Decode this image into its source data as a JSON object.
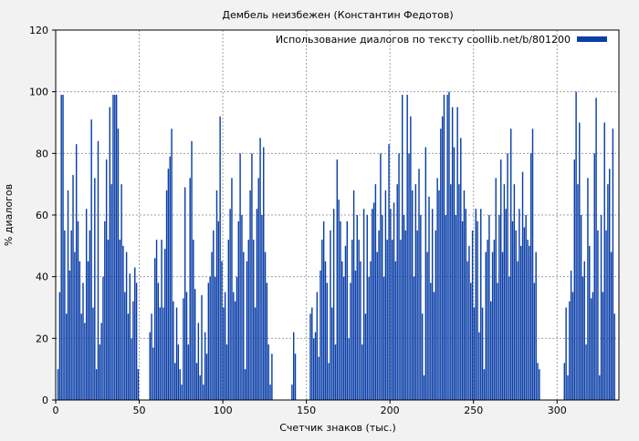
{
  "chart_data": {
    "type": "bar",
    "title": "Дембель неизбежен (Константин Федотов)",
    "xlabel": "Счетчик знаков (тыс.)",
    "ylabel": "% диалогов",
    "xlim": [
      0,
      337
    ],
    "ylim": [
      0,
      120
    ],
    "xticks": [
      0,
      50,
      100,
      150,
      200,
      250,
      300
    ],
    "yticks": [
      0,
      20,
      40,
      60,
      80,
      100,
      120
    ],
    "grid": true,
    "legend_position": "top-right",
    "series": [
      {
        "name": "Использование диалогов по тексту coollib.net/b/801200",
        "color": "#0a3ea8",
        "points": [
          [
            0,
            0
          ],
          [
            1,
            10
          ],
          [
            2,
            35
          ],
          [
            3,
            99
          ],
          [
            4,
            99
          ],
          [
            5,
            55
          ],
          [
            6,
            28
          ],
          [
            7,
            68
          ],
          [
            8,
            42
          ],
          [
            9,
            55
          ],
          [
            10,
            73
          ],
          [
            11,
            48
          ],
          [
            12,
            83
          ],
          [
            13,
            58
          ],
          [
            14,
            45
          ],
          [
            15,
            28
          ],
          [
            16,
            38
          ],
          [
            17,
            25
          ],
          [
            18,
            62
          ],
          [
            19,
            45
          ],
          [
            20,
            55
          ],
          [
            21,
            91
          ],
          [
            22,
            30
          ],
          [
            23,
            72
          ],
          [
            24,
            10
          ],
          [
            25,
            84
          ],
          [
            26,
            18
          ],
          [
            27,
            25
          ],
          [
            28,
            40
          ],
          [
            29,
            58
          ],
          [
            30,
            78
          ],
          [
            31,
            52
          ],
          [
            32,
            95
          ],
          [
            33,
            70
          ],
          [
            34,
            99
          ],
          [
            35,
            99
          ],
          [
            36,
            99
          ],
          [
            37,
            88
          ],
          [
            38,
            52
          ],
          [
            39,
            70
          ],
          [
            40,
            50
          ],
          [
            41,
            35
          ],
          [
            42,
            48
          ],
          [
            43,
            28
          ],
          [
            44,
            41
          ],
          [
            45,
            20
          ],
          [
            46,
            32
          ],
          [
            47,
            43
          ],
          [
            48,
            38
          ],
          [
            49,
            10
          ],
          [
            50,
            0
          ],
          [
            51,
            0
          ],
          [
            52,
            0
          ],
          [
            53,
            0
          ],
          [
            54,
            0
          ],
          [
            55,
            0
          ],
          [
            56,
            22
          ],
          [
            57,
            28
          ],
          [
            58,
            17
          ],
          [
            59,
            46
          ],
          [
            60,
            52
          ],
          [
            61,
            38
          ],
          [
            62,
            30
          ],
          [
            63,
            52
          ],
          [
            64,
            30
          ],
          [
            65,
            49
          ],
          [
            66,
            68
          ],
          [
            67,
            75
          ],
          [
            68,
            79
          ],
          [
            69,
            88
          ],
          [
            70,
            32
          ],
          [
            71,
            12
          ],
          [
            72,
            30
          ],
          [
            73,
            18
          ],
          [
            74,
            10
          ],
          [
            75,
            5
          ],
          [
            76,
            33
          ],
          [
            77,
            69
          ],
          [
            78,
            35
          ],
          [
            79,
            18
          ],
          [
            80,
            72
          ],
          [
            81,
            84
          ],
          [
            82,
            52
          ],
          [
            83,
            36
          ],
          [
            84,
            12
          ],
          [
            85,
            25
          ],
          [
            86,
            8
          ],
          [
            87,
            34
          ],
          [
            88,
            5
          ],
          [
            89,
            22
          ],
          [
            90,
            15
          ],
          [
            91,
            38
          ],
          [
            92,
            40
          ],
          [
            93,
            48
          ],
          [
            94,
            55
          ],
          [
            95,
            40
          ],
          [
            96,
            68
          ],
          [
            97,
            58
          ],
          [
            98,
            92
          ],
          [
            99,
            45
          ],
          [
            100,
            30
          ],
          [
            101,
            35
          ],
          [
            102,
            18
          ],
          [
            103,
            52
          ],
          [
            104,
            62
          ],
          [
            105,
            72
          ],
          [
            106,
            35
          ],
          [
            107,
            32
          ],
          [
            108,
            40
          ],
          [
            109,
            58
          ],
          [
            110,
            80
          ],
          [
            111,
            60
          ],
          [
            112,
            48
          ],
          [
            113,
            10
          ],
          [
            114,
            45
          ],
          [
            115,
            52
          ],
          [
            116,
            68
          ],
          [
            117,
            80
          ],
          [
            118,
            52
          ],
          [
            119,
            30
          ],
          [
            120,
            62
          ],
          [
            121,
            72
          ],
          [
            122,
            85
          ],
          [
            123,
            60
          ],
          [
            124,
            82
          ],
          [
            125,
            48
          ],
          [
            126,
            38
          ],
          [
            127,
            18
          ],
          [
            128,
            5
          ],
          [
            129,
            15
          ],
          [
            130,
            0
          ],
          [
            131,
            0
          ],
          [
            132,
            0
          ],
          [
            133,
            0
          ],
          [
            134,
            0
          ],
          [
            135,
            0
          ],
          [
            136,
            0
          ],
          [
            137,
            0
          ],
          [
            138,
            0
          ],
          [
            139,
            0
          ],
          [
            140,
            0
          ],
          [
            141,
            5
          ],
          [
            142,
            22
          ],
          [
            143,
            15
          ],
          [
            144,
            0
          ],
          [
            145,
            0
          ],
          [
            146,
            0
          ],
          [
            147,
            0
          ],
          [
            148,
            0
          ],
          [
            149,
            0
          ],
          [
            150,
            0
          ],
          [
            151,
            0
          ],
          [
            152,
            28
          ],
          [
            153,
            30
          ],
          [
            154,
            20
          ],
          [
            155,
            22
          ],
          [
            156,
            35
          ],
          [
            157,
            14
          ],
          [
            158,
            42
          ],
          [
            159,
            52
          ],
          [
            160,
            58
          ],
          [
            161,
            45
          ],
          [
            162,
            38
          ],
          [
            163,
            12
          ],
          [
            164,
            55
          ],
          [
            165,
            30
          ],
          [
            166,
            62
          ],
          [
            167,
            18
          ],
          [
            168,
            78
          ],
          [
            169,
            65
          ],
          [
            170,
            58
          ],
          [
            171,
            45
          ],
          [
            172,
            40
          ],
          [
            173,
            50
          ],
          [
            174,
            58
          ],
          [
            175,
            20
          ],
          [
            176,
            38
          ],
          [
            177,
            52
          ],
          [
            178,
            68
          ],
          [
            179,
            42
          ],
          [
            180,
            60
          ],
          [
            181,
            52
          ],
          [
            182,
            45
          ],
          [
            183,
            18
          ],
          [
            184,
            62
          ],
          [
            185,
            28
          ],
          [
            186,
            60
          ],
          [
            187,
            40
          ],
          [
            188,
            45
          ],
          [
            189,
            62
          ],
          [
            190,
            64
          ],
          [
            191,
            70
          ],
          [
            192,
            48
          ],
          [
            193,
            55
          ],
          [
            194,
            80
          ],
          [
            195,
            60
          ],
          [
            196,
            40
          ],
          [
            197,
            68
          ],
          [
            198,
            52
          ],
          [
            199,
            83
          ],
          [
            200,
            62
          ],
          [
            201,
            52
          ],
          [
            202,
            64
          ],
          [
            203,
            45
          ],
          [
            204,
            70
          ],
          [
            205,
            80
          ],
          [
            206,
            52
          ],
          [
            207,
            99
          ],
          [
            208,
            60
          ],
          [
            209,
            55
          ],
          [
            210,
            99
          ],
          [
            211,
            80
          ],
          [
            212,
            92
          ],
          [
            213,
            68
          ],
          [
            214,
            40
          ],
          [
            215,
            70
          ],
          [
            216,
            55
          ],
          [
            217,
            75
          ],
          [
            218,
            60
          ],
          [
            219,
            28
          ],
          [
            220,
            8
          ],
          [
            221,
            82
          ],
          [
            222,
            48
          ],
          [
            223,
            66
          ],
          [
            224,
            38
          ],
          [
            225,
            62
          ],
          [
            226,
            35
          ],
          [
            227,
            55
          ],
          [
            228,
            72
          ],
          [
            229,
            68
          ],
          [
            230,
            88
          ],
          [
            231,
            92
          ],
          [
            232,
            99
          ],
          [
            233,
            60
          ],
          [
            234,
            99
          ],
          [
            235,
            100
          ],
          [
            236,
            70
          ],
          [
            237,
            95
          ],
          [
            238,
            82
          ],
          [
            239,
            60
          ],
          [
            240,
            95
          ],
          [
            241,
            70
          ],
          [
            242,
            85
          ],
          [
            243,
            58
          ],
          [
            244,
            68
          ],
          [
            245,
            62
          ],
          [
            246,
            45
          ],
          [
            247,
            50
          ],
          [
            248,
            38
          ],
          [
            249,
            55
          ],
          [
            250,
            30
          ],
          [
            251,
            62
          ],
          [
            252,
            58
          ],
          [
            253,
            22
          ],
          [
            254,
            62
          ],
          [
            255,
            30
          ],
          [
            256,
            10
          ],
          [
            257,
            48
          ],
          [
            258,
            52
          ],
          [
            259,
            60
          ],
          [
            260,
            32
          ],
          [
            261,
            48
          ],
          [
            262,
            52
          ],
          [
            263,
            72
          ],
          [
            264,
            38
          ],
          [
            265,
            60
          ],
          [
            266,
            78
          ],
          [
            267,
            48
          ],
          [
            268,
            70
          ],
          [
            269,
            62
          ],
          [
            270,
            80
          ],
          [
            271,
            40
          ],
          [
            272,
            88
          ],
          [
            273,
            58
          ],
          [
            274,
            70
          ],
          [
            275,
            55
          ],
          [
            276,
            45
          ],
          [
            277,
            62
          ],
          [
            278,
            50
          ],
          [
            279,
            74
          ],
          [
            280,
            56
          ],
          [
            281,
            60
          ],
          [
            282,
            52
          ],
          [
            283,
            50
          ],
          [
            284,
            80
          ],
          [
            285,
            88
          ],
          [
            286,
            38
          ],
          [
            287,
            48
          ],
          [
            288,
            12
          ],
          [
            289,
            10
          ],
          [
            290,
            0
          ],
          [
            291,
            0
          ],
          [
            292,
            0
          ],
          [
            293,
            0
          ],
          [
            294,
            0
          ],
          [
            295,
            0
          ],
          [
            296,
            0
          ],
          [
            297,
            0
          ],
          [
            298,
            0
          ],
          [
            299,
            0
          ],
          [
            300,
            0
          ],
          [
            301,
            0
          ],
          [
            302,
            0
          ],
          [
            303,
            0
          ],
          [
            304,
            12
          ],
          [
            305,
            30
          ],
          [
            306,
            8
          ],
          [
            307,
            32
          ],
          [
            308,
            42
          ],
          [
            309,
            35
          ],
          [
            310,
            78
          ],
          [
            311,
            100
          ],
          [
            312,
            70
          ],
          [
            313,
            90
          ],
          [
            314,
            60
          ],
          [
            315,
            40
          ],
          [
            316,
            45
          ],
          [
            317,
            18
          ],
          [
            318,
            72
          ],
          [
            319,
            50
          ],
          [
            320,
            33
          ],
          [
            321,
            35
          ],
          [
            322,
            80
          ],
          [
            323,
            98
          ],
          [
            324,
            55
          ],
          [
            325,
            8
          ],
          [
            326,
            60
          ],
          [
            327,
            35
          ],
          [
            328,
            90
          ],
          [
            329,
            55
          ],
          [
            330,
            70
          ],
          [
            331,
            75
          ],
          [
            332,
            48
          ],
          [
            333,
            88
          ],
          [
            334,
            28
          ],
          [
            335,
            0
          ],
          [
            336,
            0
          ]
        ]
      }
    ]
  }
}
